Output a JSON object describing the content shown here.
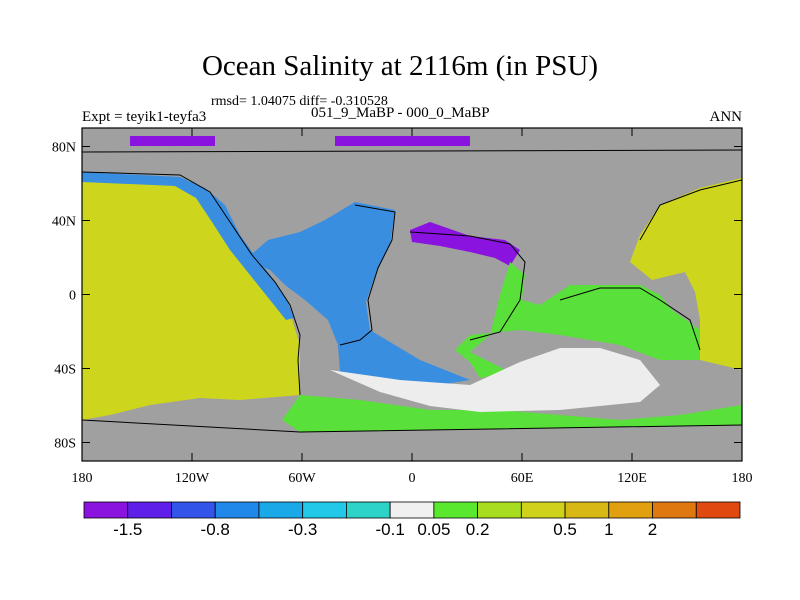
{
  "title": "Ocean Salinity at 2116m (in PSU)",
  "stats": "rmsd= 1.04075 diff= -0.310528",
  "experiment": "Expt = teyik1-teyfa3",
  "period": "051_9_MaBP - 000_0_MaBP",
  "season": "ANN",
  "lat_ticks": [
    {
      "value": 80,
      "label": "80N"
    },
    {
      "value": 40,
      "label": "40N"
    },
    {
      "value": 0,
      "label": "0"
    },
    {
      "value": -40,
      "label": "40S"
    },
    {
      "value": -80,
      "label": "80S"
    }
  ],
  "lon_ticks": [
    {
      "value": -180,
      "label": "180"
    },
    {
      "value": -120,
      "label": "120W"
    },
    {
      "value": -60,
      "label": "60W"
    },
    {
      "value": 0,
      "label": "0"
    },
    {
      "value": 60,
      "label": "60E"
    },
    {
      "value": 120,
      "label": "120E"
    },
    {
      "value": 180,
      "label": "180"
    }
  ],
  "colorbar": {
    "colors": [
      "#8a13e0",
      "#5e20e8",
      "#3354e8",
      "#1f88e8",
      "#1aa9e8",
      "#22c8e8",
      "#2ed3c8",
      "#f0f0f0",
      "#5ae82e",
      "#a8dc1e",
      "#cfd21a",
      "#d8b814",
      "#e0a010",
      "#e07810",
      "#e04a10"
    ],
    "labels": [
      "-1.5",
      "-0.8",
      "-0.3",
      "-0.1",
      "0.05",
      "0.2",
      "0.5",
      "1",
      "2"
    ],
    "label_after_box": [
      1,
      3,
      5,
      7,
      8,
      9,
      11,
      12,
      13
    ]
  },
  "colors": {
    "land": "#a0a0a0",
    "pacific": "#cdd61c",
    "atlantic": "#3a8ee0",
    "indian": "#5ae03a",
    "southern": "#ededed",
    "arctic": "#8a13e0",
    "frame": "#000000"
  }
}
